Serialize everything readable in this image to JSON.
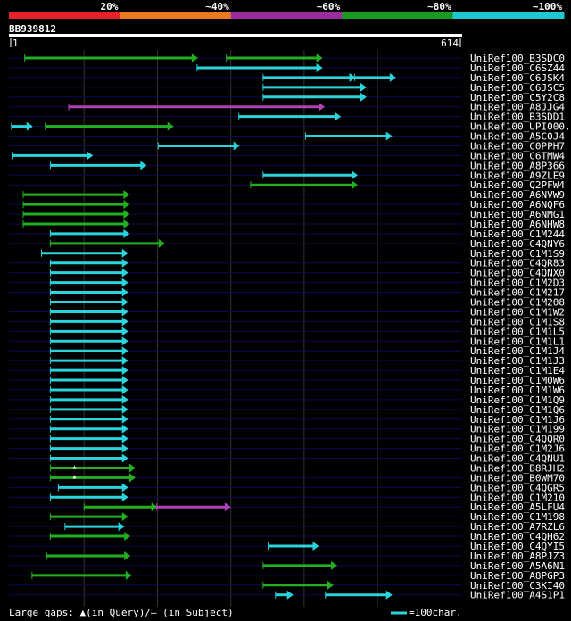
{
  "query": {
    "id": "BB939812",
    "length": 614
  },
  "identity_scale": {
    "segments": [
      {
        "label": "20%",
        "color": "#e8202a"
      },
      {
        "label": "~40%",
        "color": "#e87a22"
      },
      {
        "label": "~60%",
        "color": "#9a2c9c"
      },
      {
        "label": "~80%",
        "color": "#1a9a22"
      },
      {
        "label": "~100%",
        "color": "#1ec8d0"
      }
    ]
  },
  "ruler": {
    "start_label": "1",
    "end_label": "614"
  },
  "colors": {
    "cyan": "#2ad4dc",
    "green": "#22b022",
    "purple": "#b040b8",
    "row_line": "#0a0a55",
    "grid": "#333333",
    "ruler_bar": "#ffffff"
  },
  "hits": [
    {
      "name": "UniRef100_B3SDC0",
      "segs": [
        {
          "s": 20,
          "e": 255,
          "c": "green"
        },
        {
          "s": 295,
          "e": 425,
          "c": "green"
        }
      ]
    },
    {
      "name": "UniRef100_C6SZ44",
      "segs": [
        {
          "s": 255,
          "e": 425,
          "c": "cyan"
        }
      ]
    },
    {
      "name": "UniRef100_C6JSK4",
      "segs": [
        {
          "s": 345,
          "e": 470,
          "c": "cyan"
        },
        {
          "s": 470,
          "e": 525,
          "c": "cyan"
        }
      ]
    },
    {
      "name": "UniRef100_C6JSC5",
      "segs": [
        {
          "s": 345,
          "e": 485,
          "c": "cyan"
        }
      ]
    },
    {
      "name": "UniRef100_C5Y2C8",
      "segs": [
        {
          "s": 345,
          "e": 485,
          "c": "cyan"
        }
      ]
    },
    {
      "name": "UniRef100_A8JJG4",
      "segs": [
        {
          "s": 80,
          "e": 428,
          "c": "purple"
        }
      ]
    },
    {
      "name": "UniRef100_B3SDD1",
      "segs": [
        {
          "s": 312,
          "e": 450,
          "c": "cyan"
        }
      ]
    },
    {
      "name": "UniRef100_UPI000..",
      "segs": [
        {
          "s": 2,
          "e": 30,
          "c": "cyan"
        },
        {
          "s": 48,
          "e": 222,
          "c": "green"
        }
      ]
    },
    {
      "name": "UniRef100_A5C0J4",
      "segs": [
        {
          "s": 403,
          "e": 520,
          "c": "cyan"
        }
      ]
    },
    {
      "name": "UniRef100_C0PPH7",
      "segs": [
        {
          "s": 202,
          "e": 312,
          "c": "cyan"
        }
      ]
    },
    {
      "name": "UniRef100_C6TMW4",
      "segs": [
        {
          "s": 4,
          "e": 112,
          "c": "cyan"
        }
      ]
    },
    {
      "name": "UniRef100_A8P366",
      "segs": [
        {
          "s": 55,
          "e": 185,
          "c": "cyan"
        }
      ]
    },
    {
      "name": "UniRef100_A9ZLE9",
      "segs": [
        {
          "s": 345,
          "e": 473,
          "c": "cyan"
        }
      ]
    },
    {
      "name": "UniRef100_Q2PFW4",
      "segs": [
        {
          "s": 328,
          "e": 473,
          "c": "green"
        }
      ]
    },
    {
      "name": "UniRef100_A6NVW9",
      "segs": [
        {
          "s": 18,
          "e": 162,
          "c": "green"
        }
      ]
    },
    {
      "name": "UniRef100_A6NQF6",
      "segs": [
        {
          "s": 18,
          "e": 162,
          "c": "green"
        }
      ]
    },
    {
      "name": "UniRef100_A6NMG1",
      "segs": [
        {
          "s": 18,
          "e": 162,
          "c": "green"
        }
      ]
    },
    {
      "name": "UniRef100_A6NHW8",
      "segs": [
        {
          "s": 18,
          "e": 162,
          "c": "green"
        }
      ]
    },
    {
      "name": "UniRef100_C1M244",
      "segs": [
        {
          "s": 55,
          "e": 162,
          "c": "cyan"
        }
      ]
    },
    {
      "name": "UniRef100_C4QNY6",
      "segs": [
        {
          "s": 55,
          "e": 210,
          "c": "green"
        }
      ]
    },
    {
      "name": "UniRef100_C1M1S9",
      "segs": [
        {
          "s": 43,
          "e": 160,
          "c": "cyan"
        }
      ]
    },
    {
      "name": "UniRef100_C4QR83",
      "segs": [
        {
          "s": 55,
          "e": 160,
          "c": "cyan"
        }
      ]
    },
    {
      "name": "UniRef100_C4QNX0",
      "segs": [
        {
          "s": 55,
          "e": 160,
          "c": "cyan"
        }
      ]
    },
    {
      "name": "UniRef100_C1M2D3",
      "segs": [
        {
          "s": 55,
          "e": 160,
          "c": "cyan"
        }
      ]
    },
    {
      "name": "UniRef100_C1M217",
      "segs": [
        {
          "s": 55,
          "e": 160,
          "c": "cyan"
        }
      ]
    },
    {
      "name": "UniRef100_C1M208",
      "segs": [
        {
          "s": 55,
          "e": 160,
          "c": "cyan"
        }
      ]
    },
    {
      "name": "UniRef100_C1M1W2",
      "segs": [
        {
          "s": 55,
          "e": 160,
          "c": "cyan"
        }
      ]
    },
    {
      "name": "UniRef100_C1M1S8",
      "segs": [
        {
          "s": 55,
          "e": 160,
          "c": "cyan"
        }
      ]
    },
    {
      "name": "UniRef100_C1M1L5",
      "segs": [
        {
          "s": 55,
          "e": 160,
          "c": "cyan"
        }
      ]
    },
    {
      "name": "UniRef100_C1M1L1",
      "segs": [
        {
          "s": 55,
          "e": 160,
          "c": "cyan"
        }
      ]
    },
    {
      "name": "UniRef100_C1M1J4",
      "segs": [
        {
          "s": 55,
          "e": 160,
          "c": "cyan"
        }
      ]
    },
    {
      "name": "UniRef100_C1M1J3",
      "segs": [
        {
          "s": 55,
          "e": 160,
          "c": "cyan"
        }
      ]
    },
    {
      "name": "UniRef100_C1M1E4",
      "segs": [
        {
          "s": 55,
          "e": 160,
          "c": "cyan"
        }
      ]
    },
    {
      "name": "UniRef100_C1M0W6",
      "segs": [
        {
          "s": 55,
          "e": 160,
          "c": "cyan"
        }
      ]
    },
    {
      "name": "UniRef100_C1M1W6",
      "segs": [
        {
          "s": 55,
          "e": 160,
          "c": "cyan"
        }
      ]
    },
    {
      "name": "UniRef100_C1M1Q9",
      "segs": [
        {
          "s": 55,
          "e": 160,
          "c": "cyan"
        }
      ]
    },
    {
      "name": "UniRef100_C1M1Q6",
      "segs": [
        {
          "s": 55,
          "e": 160,
          "c": "cyan"
        }
      ]
    },
    {
      "name": "UniRef100_C1M1J6",
      "segs": [
        {
          "s": 55,
          "e": 160,
          "c": "cyan"
        }
      ]
    },
    {
      "name": "UniRef100_C1M199",
      "segs": [
        {
          "s": 55,
          "e": 160,
          "c": "cyan"
        }
      ]
    },
    {
      "name": "UniRef100_C4QQR0",
      "segs": [
        {
          "s": 55,
          "e": 160,
          "c": "cyan"
        }
      ]
    },
    {
      "name": "UniRef100_C1M2J6",
      "segs": [
        {
          "s": 55,
          "e": 160,
          "c": "cyan"
        }
      ]
    },
    {
      "name": "UniRef100_C4QNU1",
      "segs": [
        {
          "s": 55,
          "e": 160,
          "c": "cyan"
        }
      ]
    },
    {
      "name": "UniRef100_B8RJH2",
      "segs": [
        {
          "s": 55,
          "e": 170,
          "c": "green"
        }
      ],
      "gap_q": 88
    },
    {
      "name": "UniRef100_B0WM70",
      "segs": [
        {
          "s": 55,
          "e": 170,
          "c": "green"
        }
      ],
      "gap_q": 88
    },
    {
      "name": "UniRef100_C4QGR5",
      "segs": [
        {
          "s": 66,
          "e": 160,
          "c": "cyan"
        }
      ]
    },
    {
      "name": "UniRef100_C1M210",
      "segs": [
        {
          "s": 55,
          "e": 160,
          "c": "cyan"
        }
      ]
    },
    {
      "name": "UniRef100_A5LFU4",
      "segs": [
        {
          "s": 101,
          "e": 200,
          "c": "green"
        },
        {
          "s": 200,
          "e": 300,
          "c": "purple"
        }
      ]
    },
    {
      "name": "UniRef100_C1M198",
      "segs": [
        {
          "s": 55,
          "e": 160,
          "c": "green"
        }
      ]
    },
    {
      "name": "UniRef100_A7RZL6",
      "segs": [
        {
          "s": 75,
          "e": 155,
          "c": "cyan"
        }
      ]
    },
    {
      "name": "UniRef100_C4QH62",
      "segs": [
        {
          "s": 55,
          "e": 163,
          "c": "green"
        }
      ]
    },
    {
      "name": "UniRef100_C4QYI5",
      "segs": [
        {
          "s": 352,
          "e": 420,
          "c": "cyan"
        }
      ]
    },
    {
      "name": "UniRef100_A8PJZ3",
      "segs": [
        {
          "s": 50,
          "e": 163,
          "c": "green"
        }
      ]
    },
    {
      "name": "UniRef100_A5A6N1",
      "segs": [
        {
          "s": 345,
          "e": 445,
          "c": "green"
        }
      ]
    },
    {
      "name": "UniRef100_A8PGP3",
      "segs": [
        {
          "s": 30,
          "e": 165,
          "c": "green"
        }
      ]
    },
    {
      "name": "UniRef100_C3KI40",
      "segs": [
        {
          "s": 345,
          "e": 440,
          "c": "green"
        }
      ]
    },
    {
      "name": "UniRef100_A4S1P1",
      "segs": [
        {
          "s": 362,
          "e": 385,
          "c": "cyan"
        },
        {
          "s": 430,
          "e": 520,
          "c": "cyan"
        }
      ]
    }
  ],
  "footer": {
    "gaps_label": "Large gaps: ▲(in Query)/— (in Subject)",
    "scale_label": "=100char."
  }
}
